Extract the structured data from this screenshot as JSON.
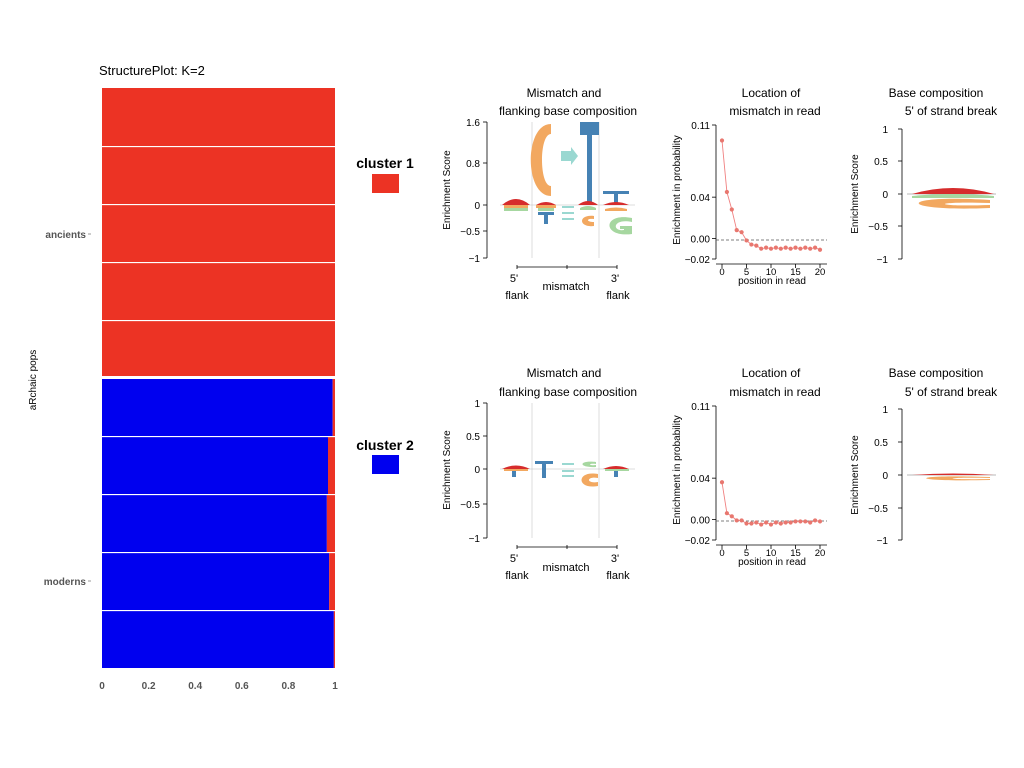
{
  "structure_plot": {
    "title": "StructurePlot: K=2",
    "ylabel": "aRchaic pops",
    "group_labels": [
      "ancients",
      "moderns"
    ],
    "x_ticks": [
      "0",
      "0.2",
      "0.4",
      "0.6",
      "0.8",
      "1"
    ],
    "colors": {
      "cluster1": "#ec3324",
      "cluster2": "#0000ef"
    }
  },
  "legend": {
    "cluster1_label": "cluster 1",
    "cluster2_label": "cluster 2"
  },
  "panel_titles": {
    "mismatch_line1": "Mismatch and",
    "mismatch_line2": "flanking base composition",
    "location_line1": "Location of",
    "location_line2": "mismatch in read",
    "base_line1": "Base composition",
    "base_line2": "5' of  strand break"
  },
  "axis_labels": {
    "enrichment_score": "Enrichment Score",
    "enrichment_probability": "Enrichment in probability",
    "position_in_read": "position in read",
    "flank5_top": "5'",
    "flank3_top": "3'",
    "flank_bottom": "flank",
    "mismatch": "mismatch"
  },
  "ticks": {
    "logo1_y": [
      "1.6",
      "0.8",
      "0",
      "−0.5",
      "−1"
    ],
    "logo2_y": [
      "1",
      "0.5",
      "0",
      "−0.5",
      "−1"
    ],
    "loc_y": [
      "0.11",
      "0.04",
      "0.00",
      "−0.02"
    ],
    "loc_x": [
      "0",
      "5",
      "10",
      "15",
      "20"
    ],
    "base_y": [
      "1",
      "0.5",
      "0",
      "−0.5",
      "−1"
    ]
  },
  "chart_data": [
    {
      "type": "bar",
      "title": "StructurePlot: K=2",
      "orientation": "horizontal-stacked",
      "ylabel": "aRchaic pops",
      "xlim": [
        0,
        1
      ],
      "rows": [
        "ancients 1",
        "ancients 2",
        "ancients 3",
        "ancients 4",
        "ancients 5",
        "moderns 1",
        "moderns 2",
        "moderns 3",
        "moderns 4",
        "moderns 5"
      ],
      "series": [
        {
          "name": "cluster 1",
          "values": [
            1,
            1,
            1,
            1,
            1,
            0.01,
            0.03,
            0.035,
            0.025,
            0.005
          ]
        },
        {
          "name": "cluster 2",
          "values": [
            0,
            0,
            0,
            0,
            0,
            0.99,
            0.97,
            0.965,
            0.975,
            0.995
          ]
        }
      ]
    },
    {
      "type": "line",
      "title": "Location of mismatch in read (cluster 1)",
      "xlabel": "position in read",
      "ylabel": "Enrichment in probability",
      "ylim": [
        -0.02,
        0.11
      ],
      "x": [
        0,
        1,
        2,
        3,
        4,
        5,
        6,
        7,
        8,
        9,
        10,
        11,
        12,
        13,
        14,
        15,
        16,
        17,
        18,
        19,
        20
      ],
      "values": [
        0.095,
        0.045,
        0.028,
        0.008,
        0.006,
        -0.002,
        -0.006,
        -0.007,
        -0.01,
        -0.009,
        -0.01,
        -0.009,
        -0.01,
        -0.009,
        -0.01,
        -0.009,
        -0.01,
        -0.009,
        -0.01,
        -0.009,
        -0.011
      ]
    },
    {
      "type": "line",
      "title": "Location of mismatch in read (cluster 2)",
      "xlabel": "position in read",
      "ylabel": "Enrichment in probability",
      "ylim": [
        -0.02,
        0.11
      ],
      "x": [
        0,
        1,
        2,
        3,
        4,
        5,
        6,
        7,
        8,
        9,
        10,
        11,
        12,
        13,
        14,
        15,
        16,
        17,
        18,
        19,
        20
      ],
      "values": [
        0.036,
        0.006,
        0.003,
        -0.001,
        -0.001,
        -0.004,
        -0.004,
        -0.003,
        -0.005,
        -0.003,
        -0.005,
        -0.003,
        -0.004,
        -0.003,
        -0.003,
        -0.002,
        -0.002,
        -0.002,
        -0.003,
        -0.001,
        -0.002
      ]
    }
  ]
}
